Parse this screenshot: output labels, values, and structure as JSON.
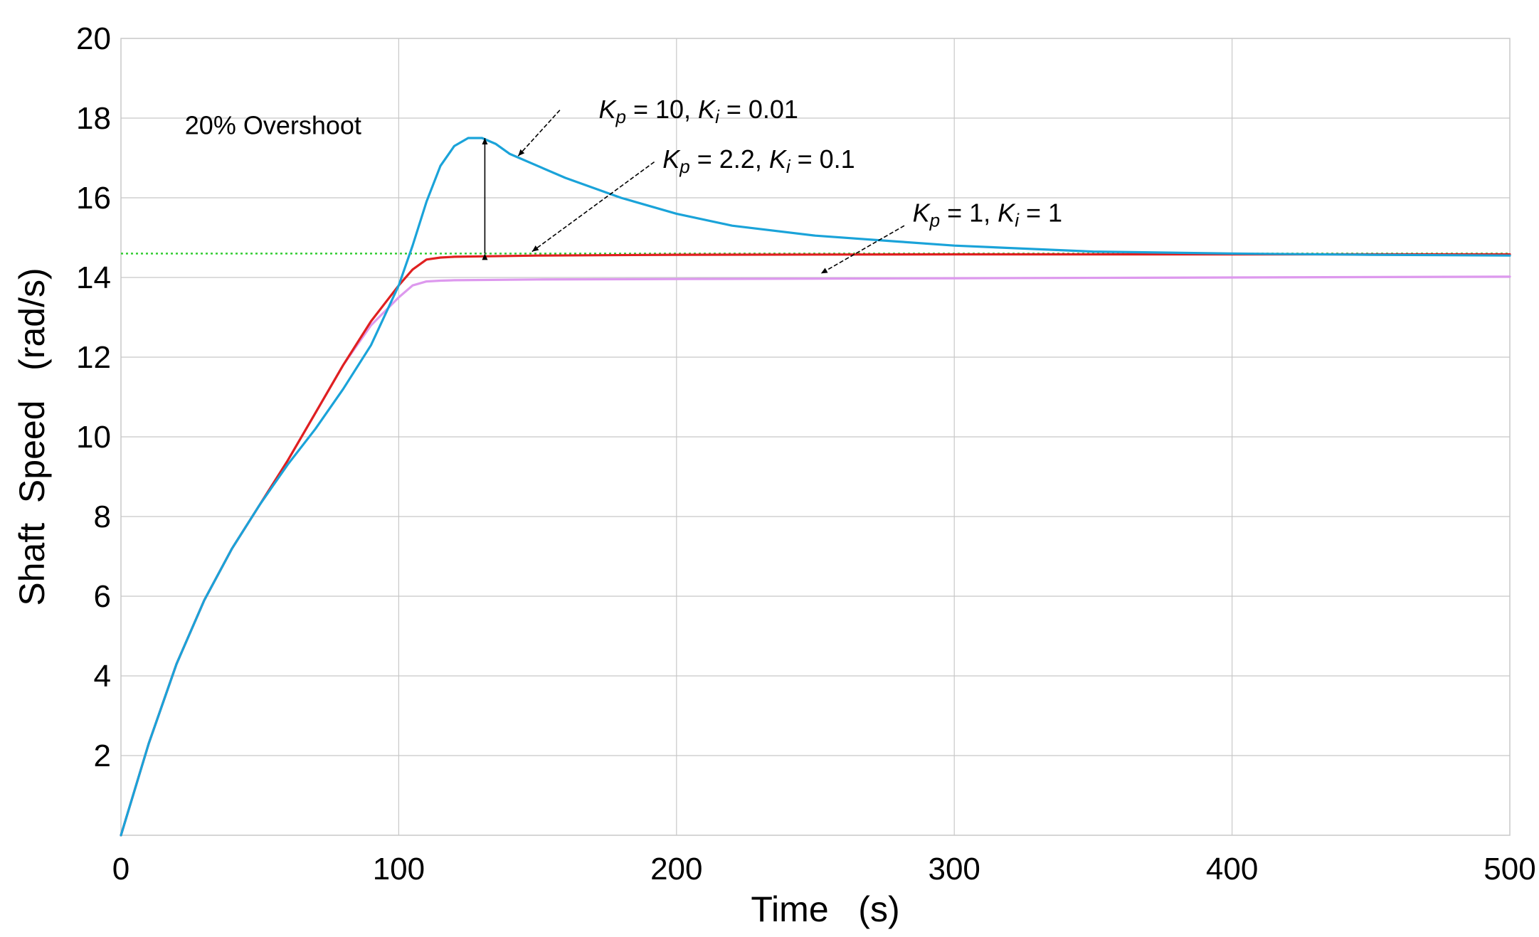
{
  "chart_data": {
    "type": "line",
    "title": "",
    "xlabel": "Time   (s)",
    "ylabel": "Shaft  Speed   (rad/s)",
    "xlim": [
      0,
      500
    ],
    "ylim": [
      0,
      20
    ],
    "grid": true,
    "x_ticks": [
      {
        "value": 0,
        "label": "0"
      },
      {
        "value": 100,
        "label": "100"
      },
      {
        "value": 200,
        "label": "200"
      },
      {
        "value": 300,
        "label": "300"
      },
      {
        "value": 400,
        "label": "400"
      },
      {
        "value": 500,
        "label": "500"
      }
    ],
    "y_ticks": [
      {
        "value": 2,
        "label": "2"
      },
      {
        "value": 4,
        "label": "4"
      },
      {
        "value": 6,
        "label": "6"
      },
      {
        "value": 8,
        "label": "8"
      },
      {
        "value": 10,
        "label": "10"
      },
      {
        "value": 12,
        "label": "12"
      },
      {
        "value": 14,
        "label": "14"
      },
      {
        "value": 16,
        "label": "16"
      },
      {
        "value": 18,
        "label": "18"
      },
      {
        "value": 20,
        "label": "20"
      }
    ],
    "reference_line": {
      "name": "setpoint",
      "y": 14.6,
      "color": "#33cc33",
      "style": "dotted"
    },
    "series": [
      {
        "name": "Kp = 10, Ki = 0.01",
        "color": "#1aa3d9",
        "x": [
          0,
          10,
          20,
          30,
          40,
          50,
          60,
          70,
          80,
          90,
          100,
          105,
          110,
          115,
          120,
          125,
          130,
          135,
          140,
          150,
          160,
          180,
          200,
          220,
          250,
          280,
          300,
          350,
          400,
          450,
          500
        ],
        "y": [
          0,
          2.3,
          4.3,
          5.9,
          7.2,
          8.3,
          9.3,
          10.2,
          11.2,
          12.3,
          13.8,
          14.8,
          15.9,
          16.8,
          17.3,
          17.5,
          17.5,
          17.35,
          17.1,
          16.8,
          16.5,
          16.0,
          15.6,
          15.3,
          15.05,
          14.9,
          14.8,
          14.65,
          14.6,
          14.57,
          14.55
        ]
      },
      {
        "name": "Kp = 2.2, Ki = 0.1",
        "color": "#e02020",
        "x": [
          0,
          10,
          20,
          30,
          40,
          50,
          60,
          70,
          80,
          90,
          100,
          105,
          110,
          115,
          120,
          130,
          150,
          200,
          300,
          400,
          500
        ],
        "y": [
          0,
          2.3,
          4.3,
          5.9,
          7.2,
          8.3,
          9.4,
          10.6,
          11.8,
          12.9,
          13.8,
          14.2,
          14.45,
          14.5,
          14.52,
          14.53,
          14.55,
          14.57,
          14.58,
          14.58,
          14.58
        ]
      },
      {
        "name": "Kp = 1, Ki = 1",
        "color": "#dd99ee",
        "x": [
          0,
          10,
          20,
          30,
          40,
          50,
          60,
          70,
          80,
          90,
          100,
          105,
          110,
          115,
          120,
          150,
          200,
          300,
          400,
          500
        ],
        "y": [
          0,
          2.3,
          4.3,
          5.9,
          7.2,
          8.3,
          9.4,
          10.6,
          11.8,
          12.8,
          13.5,
          13.8,
          13.9,
          13.92,
          13.93,
          13.95,
          13.96,
          13.98,
          14.0,
          14.02
        ]
      }
    ],
    "annotations": [
      {
        "id": "overshoot",
        "text": "20%  Overshoot",
        "x": 23,
        "y": 17.6
      },
      {
        "id": "kp10",
        "pre_kp": "K",
        "sub_kp": "p",
        "mid": " = 10,  ",
        "pre_ki": "K",
        "sub_ki": "i",
        "post": " = 0.01",
        "x": 172,
        "y": 18.0
      },
      {
        "id": "kp22",
        "pre_kp": "K",
        "sub_kp": "p",
        "mid": " = 2.2,  ",
        "pre_ki": "K",
        "sub_ki": "i",
        "post": " = 0.1",
        "x": 195,
        "y": 16.75
      },
      {
        "id": "kp1",
        "pre_kp": "K",
        "sub_kp": "p",
        "mid": " = 1,  ",
        "pre_ki": "K",
        "sub_ki": "i",
        "post": " = 1",
        "x": 285,
        "y": 15.4
      }
    ],
    "arrows": [
      {
        "name": "arrow-kp10",
        "from": [
          158,
          18.2
        ],
        "to": [
          143,
          17.05
        ]
      },
      {
        "name": "arrow-kp22",
        "from": [
          192,
          16.9
        ],
        "to": [
          148,
          14.65
        ]
      },
      {
        "name": "arrow-kp1",
        "from": [
          282,
          15.3
        ],
        "to": [
          252,
          14.1
        ]
      },
      {
        "name": "overshoot-arrow",
        "from": [
          131,
          14.6
        ],
        "to": [
          131,
          17.5
        ],
        "double": true
      }
    ]
  }
}
